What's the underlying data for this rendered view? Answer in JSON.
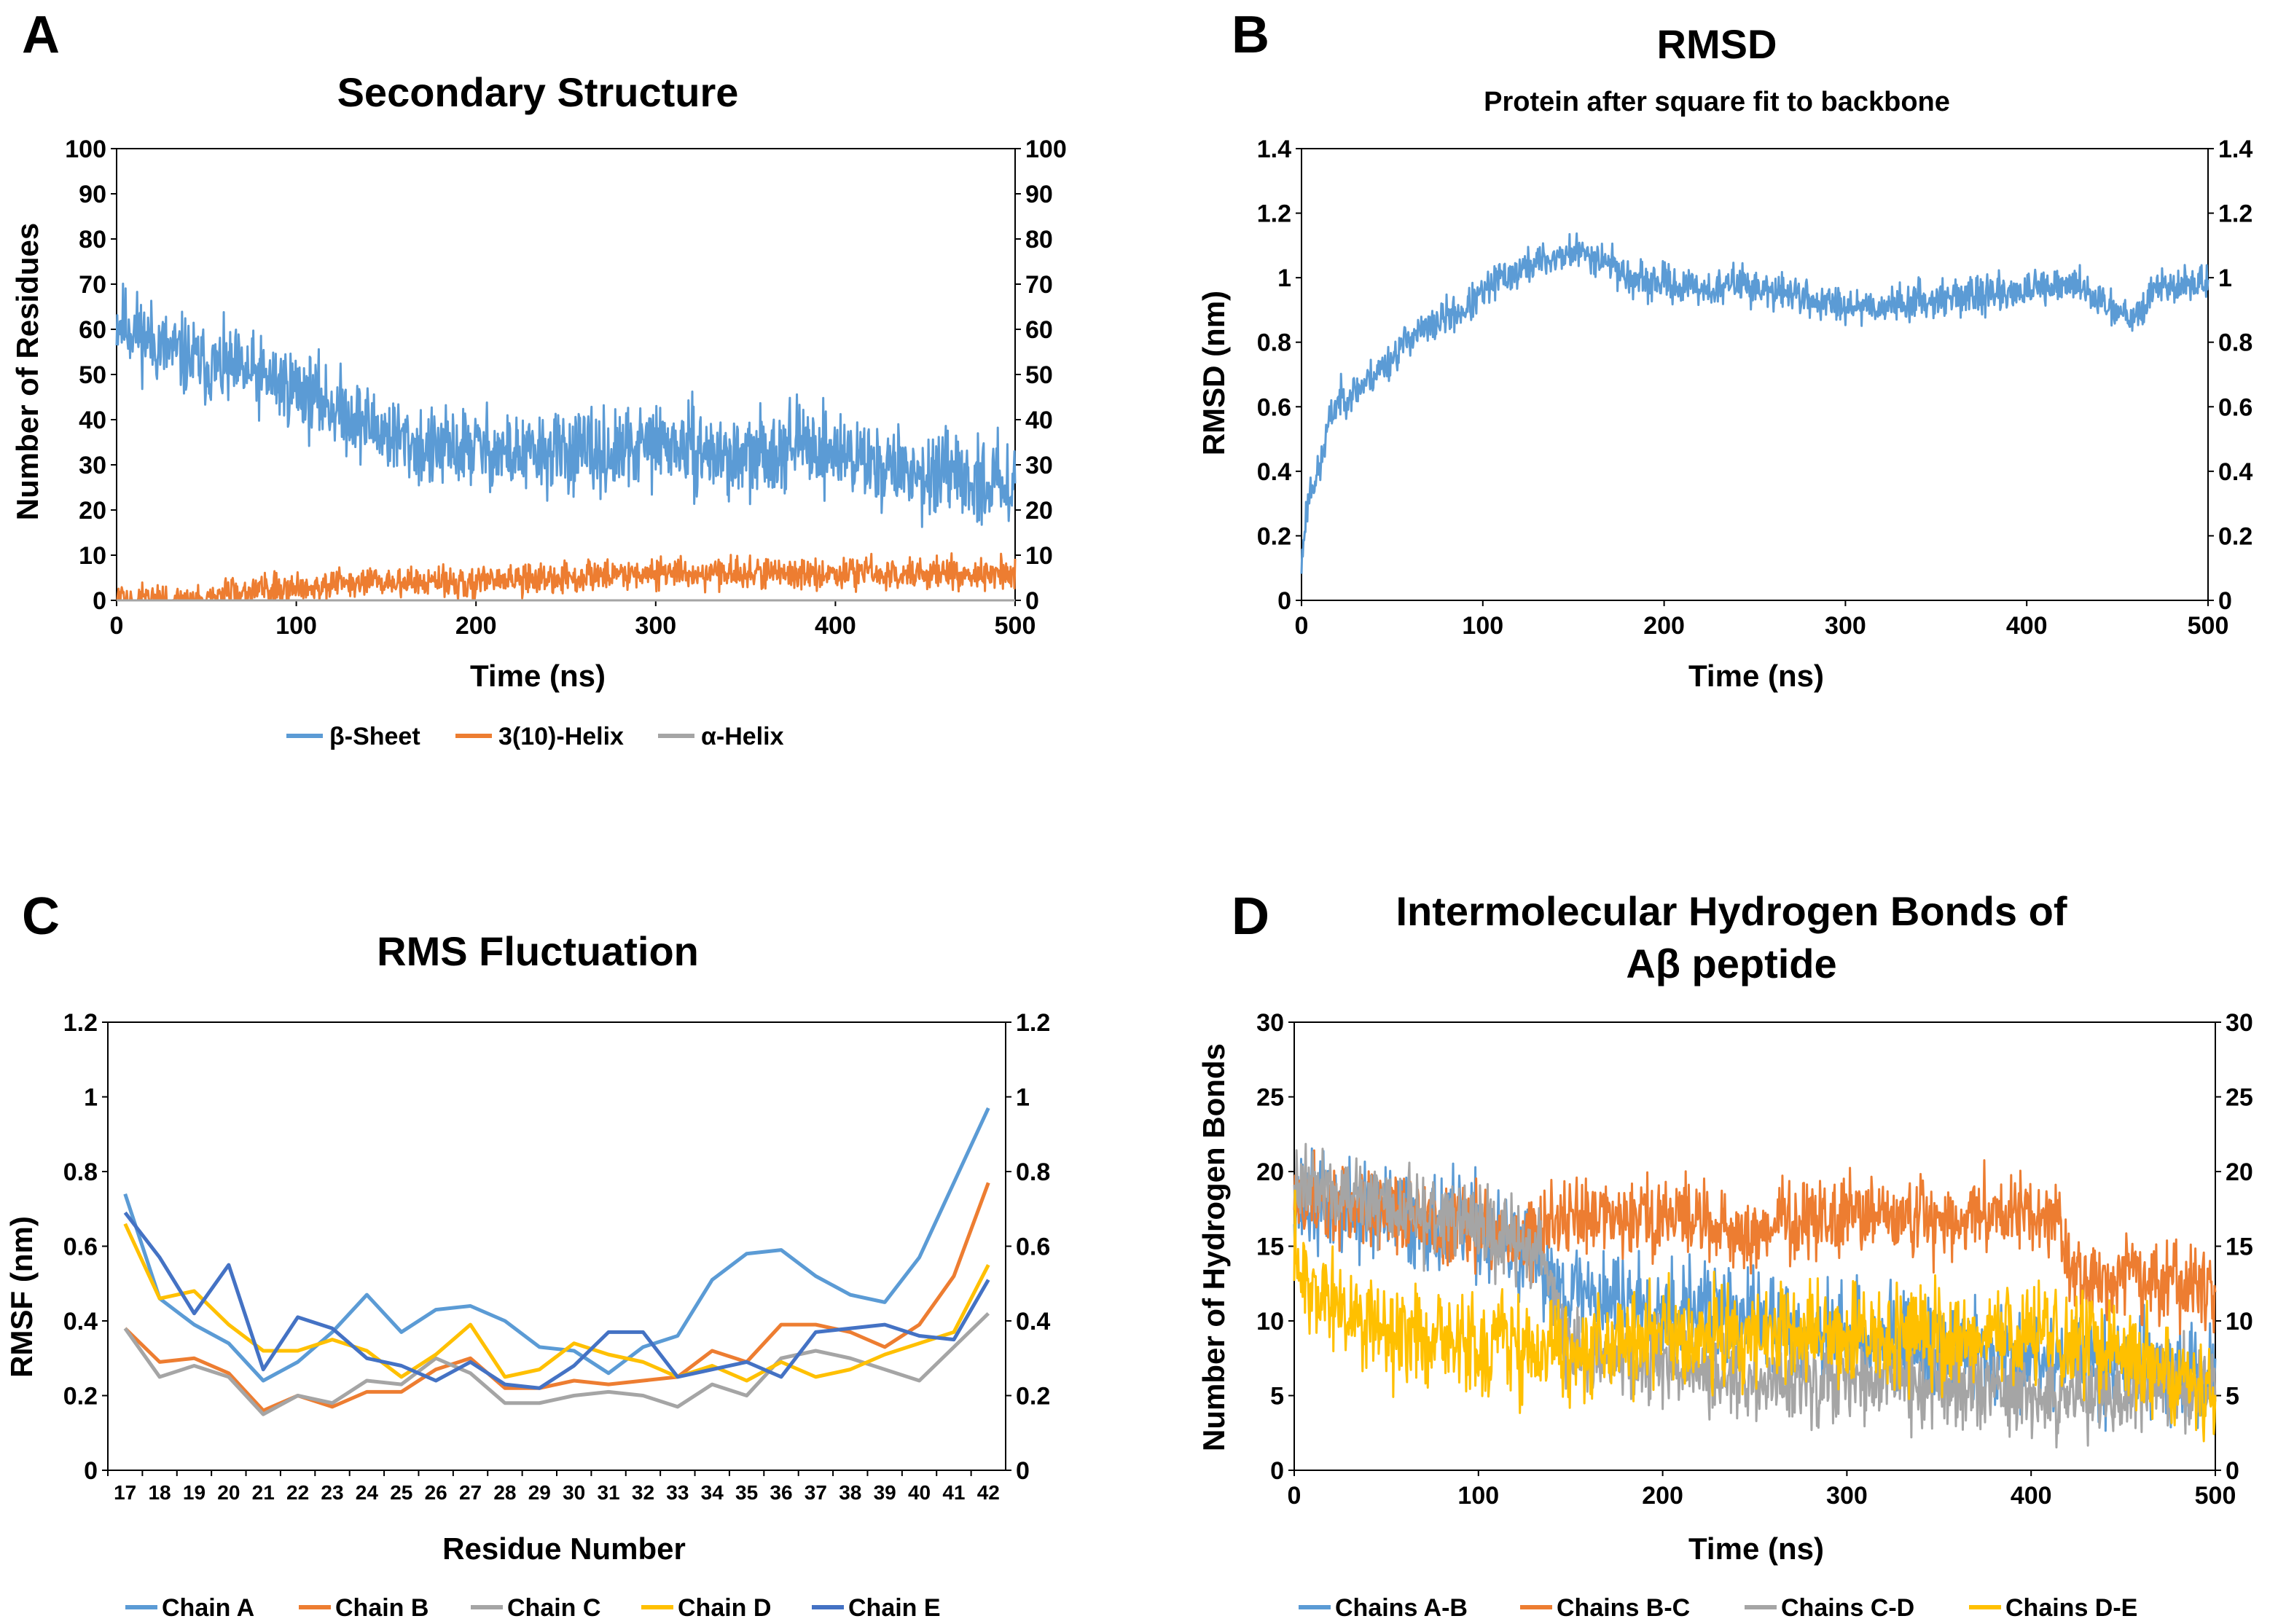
{
  "chart_data": [
    {
      "panel": "A",
      "type": "line",
      "title": "Secondary Structure",
      "xlabel": "Time (ns)",
      "ylabel": "Number of Residues",
      "xlim": [
        0,
        500
      ],
      "ylim": [
        0,
        100
      ],
      "xticks": [
        0,
        100,
        200,
        300,
        400,
        500
      ],
      "yticks": [
        0,
        10,
        20,
        30,
        40,
        50,
        60,
        70,
        80,
        90,
        100
      ],
      "legend_position": "bottom",
      "series": [
        {
          "name": "β-Sheet",
          "color": "#5b9bd5",
          "x": [
            0,
            10,
            25,
            50,
            75,
            100,
            125,
            150,
            175,
            200,
            225,
            250,
            275,
            300,
            325,
            350,
            375,
            400,
            425,
            450,
            475,
            500
          ],
          "y": [
            62,
            60,
            56,
            52,
            50,
            47,
            42,
            37,
            33,
            34,
            32,
            33,
            32,
            35,
            33,
            31,
            35,
            33,
            30,
            28,
            26,
            27
          ],
          "noise": 8
        },
        {
          "name": "3(10)-Helix",
          "color": "#ed7d31",
          "x": [
            0,
            55,
            60,
            100,
            150,
            200,
            250,
            280,
            300,
            350,
            400,
            450,
            500
          ],
          "y": [
            0,
            0,
            2,
            3,
            4,
            4,
            5,
            6,
            6,
            6,
            6,
            6,
            6
          ],
          "noise": 3
        },
        {
          "name": "α-Helix",
          "color": "#a5a5a5",
          "x": [
            0,
            500
          ],
          "y": [
            0,
            0
          ],
          "noise": 0
        }
      ]
    },
    {
      "panel": "B",
      "type": "line",
      "title": "RMSD",
      "subtitle": "Protein after square fit to backbone",
      "xlabel": "Time (ns)",
      "ylabel": "RMSD (nm)",
      "xlim": [
        0,
        500
      ],
      "ylim": [
        0,
        1.4
      ],
      "xticks": [
        0,
        100,
        200,
        300,
        400,
        500
      ],
      "yticks": [
        0,
        0.2,
        0.4,
        0.6,
        0.8,
        1,
        1.2,
        1.4
      ],
      "series": [
        {
          "name": "RMSD",
          "color": "#5b9bd5",
          "x": [
            0,
            2,
            5,
            10,
            15,
            20,
            30,
            40,
            50,
            60,
            70,
            80,
            90,
            100,
            110,
            120,
            130,
            140,
            150,
            160,
            170,
            180,
            190,
            200,
            210,
            220,
            230,
            240,
            250,
            260,
            270,
            280,
            290,
            300,
            320,
            340,
            360,
            380,
            400,
            420,
            430,
            440,
            450,
            460,
            465,
            470,
            480,
            490,
            500
          ],
          "y": [
            0.1,
            0.25,
            0.35,
            0.4,
            0.55,
            0.62,
            0.65,
            0.7,
            0.75,
            0.82,
            0.84,
            0.88,
            0.9,
            0.95,
            1.0,
            1.02,
            1.05,
            1.06,
            1.08,
            1.07,
            1.05,
            1.0,
            0.98,
            0.99,
            0.97,
            0.97,
            0.96,
            0.99,
            0.97,
            0.95,
            0.96,
            0.93,
            0.92,
            0.92,
            0.91,
            0.93,
            0.94,
            0.95,
            0.96,
            0.97,
            0.98,
            0.93,
            0.9,
            0.89,
            0.9,
            0.98,
            0.97,
            0.98,
            0.99
          ],
          "noise": 0.05
        }
      ]
    },
    {
      "panel": "C",
      "type": "line",
      "title": "RMS Fluctuation",
      "xlabel": "Residue Number",
      "ylabel": "RMSF (nm)",
      "ylim": [
        0,
        1.2
      ],
      "yticks": [
        0,
        0.2,
        0.4,
        0.6,
        0.8,
        1,
        1.2
      ],
      "categories": [
        "17",
        "18",
        "19",
        "20",
        "21",
        "22",
        "23",
        "24",
        "25",
        "26",
        "27",
        "28",
        "29",
        "30",
        "31",
        "32",
        "33",
        "34",
        "35",
        "36",
        "37",
        "38",
        "39",
        "40",
        "41",
        "42"
      ],
      "legend_position": "bottom",
      "series": [
        {
          "name": "Chain A",
          "color": "#5b9bd5",
          "values": [
            0.74,
            0.46,
            0.39,
            0.34,
            0.24,
            0.29,
            0.37,
            0.47,
            0.37,
            0.43,
            0.44,
            0.4,
            0.33,
            0.32,
            0.26,
            0.33,
            0.36,
            0.51,
            0.58,
            0.59,
            0.52,
            0.47,
            0.45,
            0.57,
            0.77,
            0.97
          ]
        },
        {
          "name": "Chain B",
          "color": "#ed7d31",
          "values": [
            0.38,
            0.29,
            0.3,
            0.26,
            0.16,
            0.2,
            0.17,
            0.21,
            0.21,
            0.27,
            0.3,
            0.22,
            0.22,
            0.24,
            0.23,
            0.24,
            0.25,
            0.32,
            0.29,
            0.39,
            0.39,
            0.37,
            0.33,
            0.39,
            0.52,
            0.77
          ]
        },
        {
          "name": "Chain C",
          "color": "#a5a5a5",
          "values": [
            0.38,
            0.25,
            0.28,
            0.25,
            0.15,
            0.2,
            0.18,
            0.24,
            0.23,
            0.3,
            0.26,
            0.18,
            0.18,
            0.2,
            0.21,
            0.2,
            0.17,
            0.23,
            0.2,
            0.3,
            0.32,
            0.3,
            0.27,
            0.24,
            0.33,
            0.42
          ]
        },
        {
          "name": "Chain D",
          "color": "#ffc000",
          "values": [
            0.66,
            0.46,
            0.48,
            0.39,
            0.32,
            0.32,
            0.35,
            0.32,
            0.25,
            0.31,
            0.39,
            0.25,
            0.27,
            0.34,
            0.31,
            0.29,
            0.25,
            0.28,
            0.24,
            0.29,
            0.25,
            0.27,
            0.31,
            0.34,
            0.37,
            0.55
          ]
        },
        {
          "name": "Chain E",
          "color": "#4472c4",
          "values": [
            0.69,
            0.57,
            0.42,
            0.55,
            0.27,
            0.41,
            0.38,
            0.3,
            0.28,
            0.24,
            0.29,
            0.23,
            0.22,
            0.28,
            0.37,
            0.37,
            0.25,
            0.27,
            0.29,
            0.25,
            0.37,
            0.38,
            0.39,
            0.36,
            0.35,
            0.51
          ]
        }
      ]
    },
    {
      "panel": "D",
      "type": "line",
      "title": "Intermolecular Hydrogen Bonds of Aβ peptide",
      "title_lines": [
        "Intermolecular Hydrogen Bonds of",
        "Aβ peptide"
      ],
      "xlabel": "Time (ns)",
      "ylabel": "Number of Hydrogen Bonds",
      "xlim": [
        0,
        500
      ],
      "ylim": [
        0,
        30
      ],
      "xticks": [
        0,
        100,
        200,
        300,
        400,
        500
      ],
      "yticks": [
        0,
        5,
        10,
        15,
        20,
        25,
        30
      ],
      "legend_position": "bottom",
      "series": [
        {
          "name": "Chains A-B",
          "color": "#5b9bd5",
          "x": [
            0,
            50,
            100,
            150,
            200,
            250,
            300,
            350,
            400,
            450,
            500
          ],
          "y": [
            18,
            17,
            16,
            12,
            11,
            10,
            9,
            8,
            8,
            7,
            6
          ],
          "noise": 3
        },
        {
          "name": "Chains B-C",
          "color": "#ed7d31",
          "x": [
            0,
            50,
            100,
            120,
            130,
            150,
            200,
            250,
            300,
            350,
            400,
            415,
            420,
            450,
            500
          ],
          "y": [
            18,
            17,
            16,
            15,
            16,
            17,
            17,
            16,
            17,
            17,
            17,
            17,
            13,
            13,
            12
          ],
          "noise": 2.5
        },
        {
          "name": "Chains C-D",
          "color": "#a5a5a5",
          "x": [
            0,
            50,
            100,
            130,
            150,
            200,
            250,
            300,
            350,
            400,
            450,
            500
          ],
          "y": [
            19,
            18,
            16,
            15,
            8,
            7,
            6,
            6,
            6,
            5,
            5,
            6
          ],
          "noise": 2.5
        },
        {
          "name": "Chains D-E",
          "color": "#ffc000",
          "x": [
            0,
            10,
            50,
            100,
            150,
            200,
            250,
            300,
            350,
            400,
            450,
            480,
            500
          ],
          "y": [
            15,
            12,
            9,
            8,
            8,
            9,
            9,
            9,
            9,
            9,
            8,
            6,
            5
          ],
          "noise": 3
        }
      ]
    }
  ]
}
